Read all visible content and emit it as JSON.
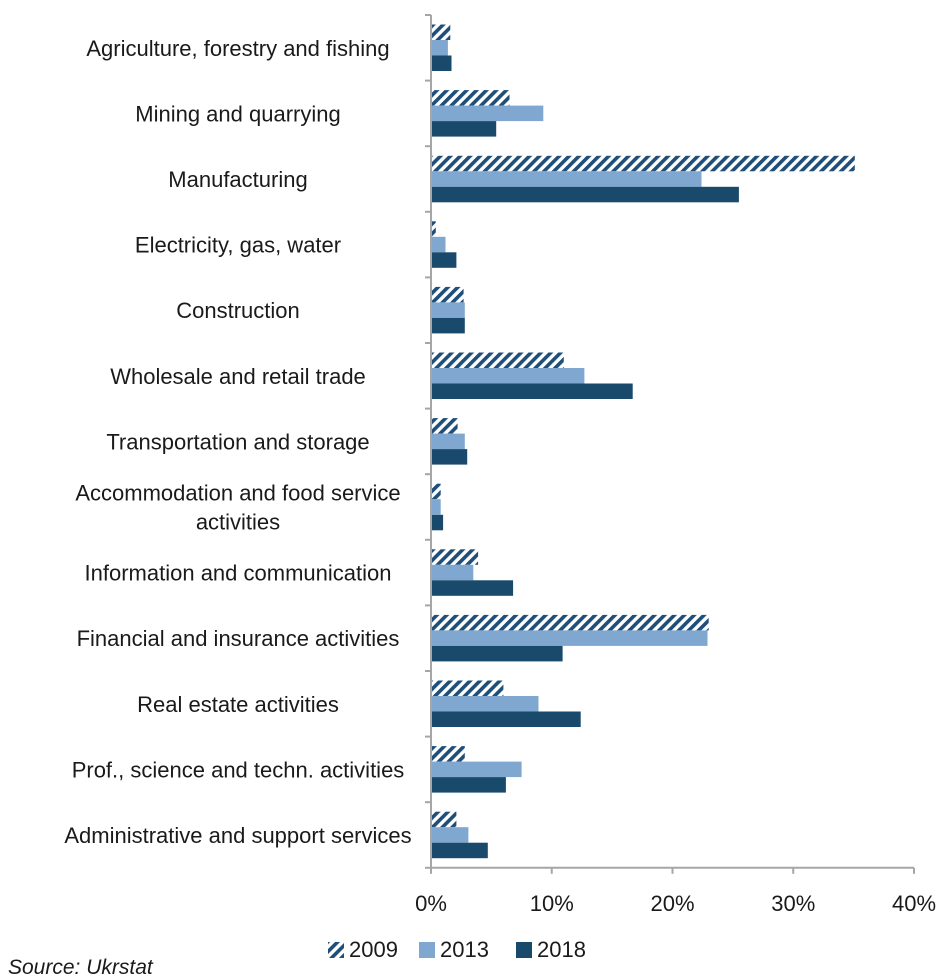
{
  "chart_data": {
    "type": "bar",
    "orientation": "horizontal",
    "categories": [
      "Agriculture, forestry and fishing",
      "Mining and quarrying",
      "Manufacturing",
      "Electricity, gas, water",
      "Construction",
      "Wholesale and retail trade",
      "Transportation and storage",
      "Accommodation and food service activities",
      "Information and communication",
      "Financial and insurance activities",
      "Real estate activities",
      "Prof., science and techn. activities",
      "Administrative and support services"
    ],
    "category_lines": [
      [
        "Agriculture, forestry and fishing"
      ],
      [
        "Mining and quarrying"
      ],
      [
        "Manufacturing"
      ],
      [
        "Electricity, gas, water"
      ],
      [
        "Construction"
      ],
      [
        "Wholesale and retail trade"
      ],
      [
        "Transportation and storage"
      ],
      [
        "Accommodation and food service",
        "activities"
      ],
      [
        "Information and communication"
      ],
      [
        "Financial and insurance activities"
      ],
      [
        "Real estate activities"
      ],
      [
        "Prof., science and techn. activities"
      ],
      [
        "Administrative and support services"
      ]
    ],
    "series": [
      {
        "name": "2009",
        "color": "#1f4e79",
        "pattern": "diagonal-hatch",
        "values": [
          1.6,
          6.5,
          35.1,
          0.4,
          2.7,
          11.0,
          2.2,
          0.8,
          3.9,
          23.0,
          6.0,
          2.8,
          2.1
        ]
      },
      {
        "name": "2013",
        "color": "#7fa7cf",
        "pattern": "solid",
        "values": [
          1.4,
          9.3,
          22.4,
          1.2,
          2.8,
          12.7,
          2.8,
          0.8,
          3.5,
          22.9,
          8.9,
          7.5,
          3.1
        ]
      },
      {
        "name": "2018",
        "color": "#1a4a6b",
        "pattern": "solid",
        "values": [
          1.7,
          5.4,
          25.5,
          2.1,
          2.8,
          16.7,
          3.0,
          1.0,
          6.8,
          10.9,
          12.4,
          6.2,
          4.7
        ]
      }
    ],
    "xlim": [
      0,
      40
    ],
    "xticks": [
      "0%",
      "10%",
      "20%",
      "30%",
      "40%"
    ],
    "xtick_values": [
      0,
      10,
      20,
      30,
      40
    ],
    "title": "",
    "xlabel": "",
    "ylabel": "",
    "grid": false,
    "legend_position": "bottom-center"
  },
  "source": "Source: Ukrstat"
}
